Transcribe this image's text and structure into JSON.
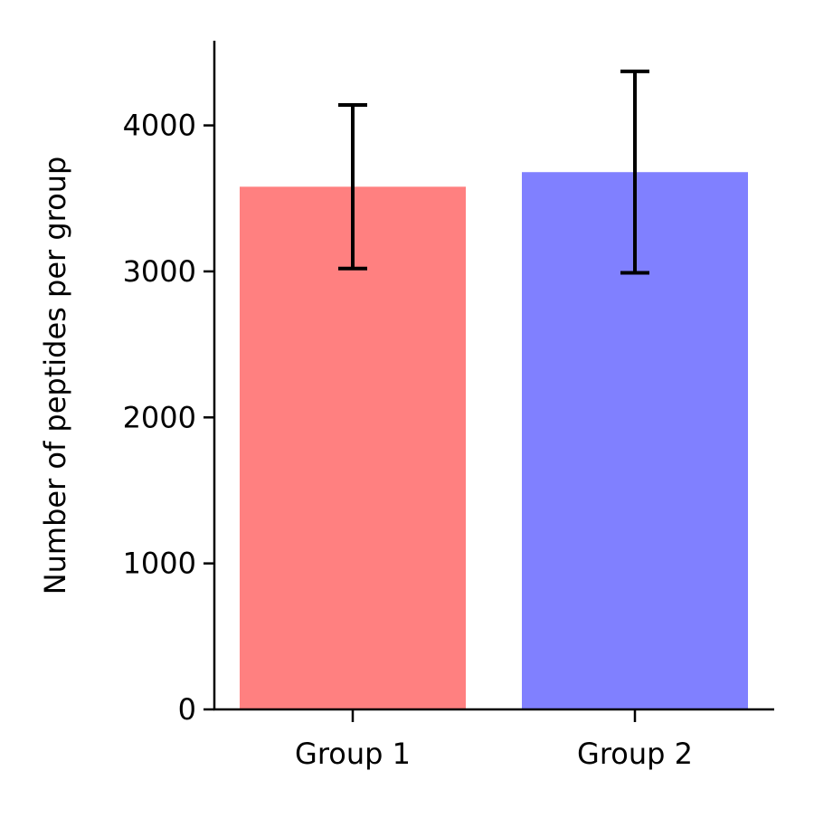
{
  "chart_data": {
    "type": "bar",
    "categories": [
      "Group 1",
      "Group 2"
    ],
    "values": [
      3580,
      3680
    ],
    "error_bars": {
      "upper": [
        4140,
        4370
      ],
      "lower": [
        3020,
        2990
      ]
    },
    "colors": [
      "#ff8080",
      "#8080ff"
    ],
    "title": "",
    "xlabel": "",
    "ylabel": "Number of peptides per group",
    "ylim": [
      0,
      4580
    ],
    "yticks": [
      0,
      1000,
      2000,
      3000,
      4000
    ],
    "ytick_labels": [
      "0",
      "1000",
      "2000",
      "3000",
      "4000"
    ],
    "grid": false,
    "legend": "none"
  }
}
